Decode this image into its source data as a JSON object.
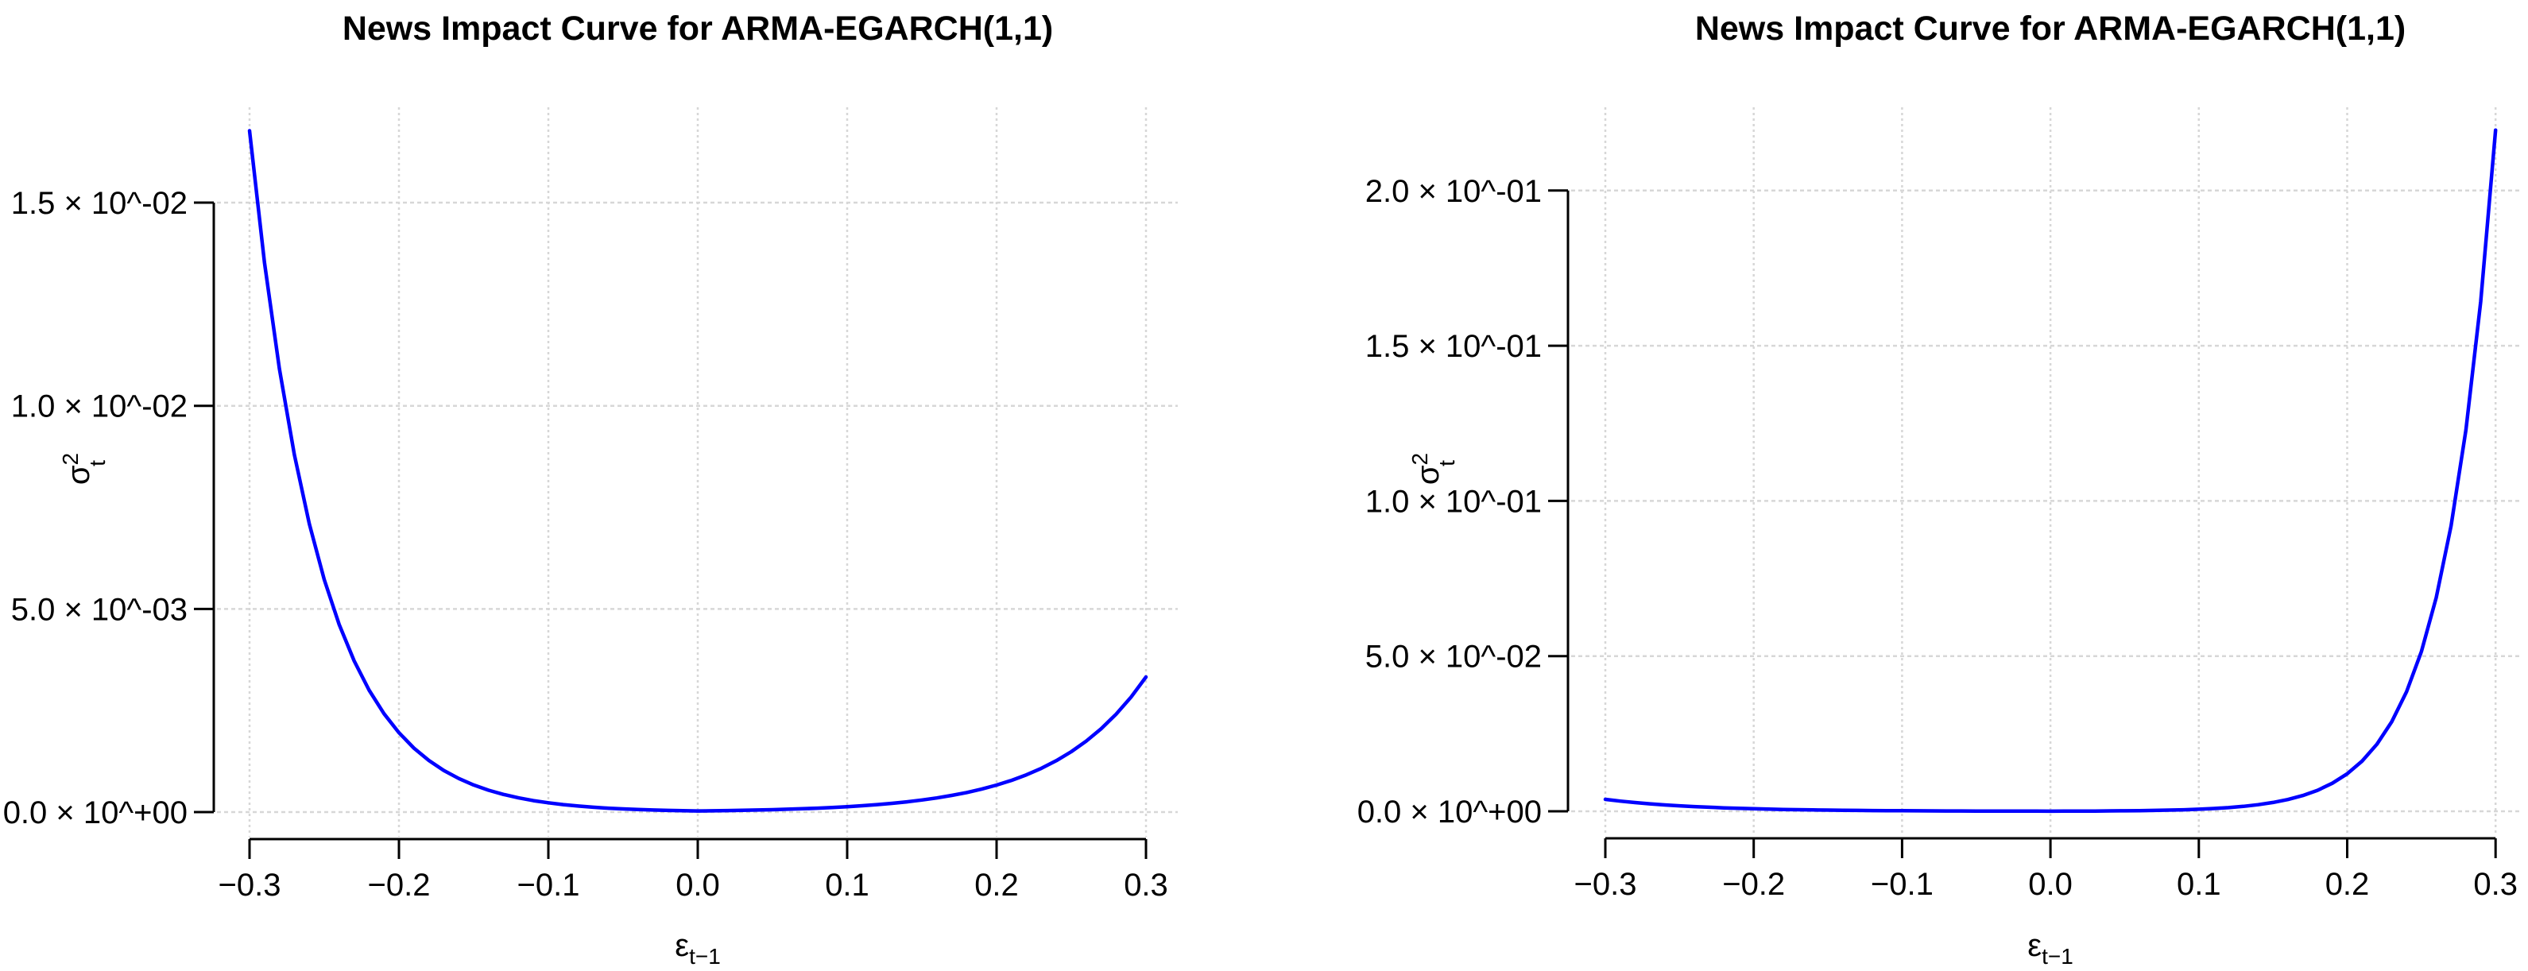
{
  "figure": {
    "background": "#ffffff",
    "curve_color": "#0000ff",
    "grid_color": "#d7d7d7",
    "axis_color": "#000000",
    "text_color": "#000000"
  },
  "chart_data": [
    {
      "type": "line",
      "title": "News Impact Curve for ARMA-EGARCH(1,1)",
      "xlabel": {
        "base": "ε",
        "sub": "t−1"
      },
      "ylabel": {
        "base": "σ",
        "sup": "2",
        "sub": "t"
      },
      "xlim": [
        -0.3,
        0.3
      ],
      "ylim": [
        0,
        0.0168
      ],
      "grid": true,
      "legend": null,
      "x_ticks": [
        -0.3,
        -0.2,
        -0.1,
        0.0,
        0.1,
        0.2,
        0.3
      ],
      "x_tick_labels": [
        "−0.3",
        "−0.2",
        "−0.1",
        "0.0",
        "0.1",
        "0.2",
        "0.3"
      ],
      "y_ticks": [
        0,
        0.005,
        0.01,
        0.015
      ],
      "y_tick_labels": [
        "0.0 × 10^+00",
        "5.0 × 10^-03",
        "1.0 × 10^-02",
        "1.5 × 10^-02"
      ],
      "series": [
        {
          "name": "news-impact-curve",
          "color": "#0000ff",
          "x": [
            -0.3,
            -0.29,
            -0.28,
            -0.27,
            -0.26,
            -0.25,
            -0.24,
            -0.23,
            -0.22,
            -0.21,
            -0.2,
            -0.19,
            -0.18,
            -0.17,
            -0.16,
            -0.15,
            -0.14,
            -0.13,
            -0.12,
            -0.11,
            -0.1,
            -0.09,
            -0.08,
            -0.07,
            -0.06,
            -0.05,
            -0.04,
            -0.03,
            -0.02,
            -0.01,
            0,
            0.01,
            0.02,
            0.03,
            0.04,
            0.05,
            0.06,
            0.07,
            0.08,
            0.09,
            0.1,
            0.11,
            0.12,
            0.13,
            0.14,
            0.15,
            0.16,
            0.17,
            0.18,
            0.19,
            0.2,
            0.21,
            0.22,
            0.23,
            0.24,
            0.25,
            0.26,
            0.27,
            0.28,
            0.29,
            0.3
          ],
          "y": [
            0.01677,
            0.013525,
            0.010908,
            0.008798,
            0.007096,
            0.005723,
            0.004616,
            0.003723,
            0.003003,
            0.002422,
            0.001953,
            0.001575,
            0.001271,
            0.001025,
            0.000827,
            0.000667,
            0.000538,
            0.000434,
            0.00035,
            0.000282,
            0.000228,
            0.000184,
            0.000148,
            0.000119,
            9.6e-05,
            7.8e-05,
            6.3e-05,
            5.1e-05,
            4.1e-05,
            3.3e-05,
            2.65e-05,
            3.1e-05,
            3.7e-05,
            4.3e-05,
            5.1e-05,
            5.9e-05,
            7e-05,
            8.2e-05,
            9.6e-05,
            0.000113,
            0.000133,
            0.000156,
            0.000183,
            0.000215,
            0.000253,
            0.000297,
            0.000349,
            0.00041,
            0.000481,
            0.000566,
            0.000664,
            0.00078,
            0.000917,
            0.001077,
            0.001265,
            0.001486,
            0.001746,
            0.002051,
            0.002409,
            0.00283,
            0.003324
          ]
        }
      ]
    },
    {
      "type": "line",
      "title": "News Impact Curve for ARMA-EGARCH(1,1)",
      "xlabel": {
        "base": "ε",
        "sub": "t−1"
      },
      "ylabel": {
        "base": "σ",
        "sup": "2",
        "sub": "t"
      },
      "xlim": [
        -0.3,
        0.3
      ],
      "ylim": [
        0,
        0.2195
      ],
      "grid": true,
      "legend": null,
      "x_ticks": [
        -0.3,
        -0.2,
        -0.1,
        0.0,
        0.1,
        0.2,
        0.3
      ],
      "x_tick_labels": [
        "−0.3",
        "−0.2",
        "−0.1",
        "0.0",
        "0.1",
        "0.2",
        "0.3"
      ],
      "y_ticks": [
        0,
        0.05,
        0.1,
        0.15,
        0.2
      ],
      "y_tick_labels": [
        "0.0 × 10^+00",
        "5.0 × 10^-02",
        "1.0 × 10^-01",
        "1.5 × 10^-01",
        "2.0 × 10^-01"
      ],
      "series": [
        {
          "name": "news-impact-curve",
          "color": "#0000ff",
          "x": [
            -0.3,
            -0.29,
            -0.28,
            -0.27,
            -0.26,
            -0.25,
            -0.24,
            -0.23,
            -0.22,
            -0.21,
            -0.2,
            -0.19,
            -0.18,
            -0.17,
            -0.16,
            -0.15,
            -0.14,
            -0.13,
            -0.12,
            -0.11,
            -0.1,
            -0.09,
            -0.08,
            -0.07,
            -0.06,
            -0.05,
            -0.04,
            -0.03,
            -0.02,
            -0.01,
            0,
            0.01,
            0.02,
            0.03,
            0.04,
            0.05,
            0.06,
            0.07,
            0.08,
            0.09,
            0.1,
            0.11,
            0.12,
            0.13,
            0.14,
            0.15,
            0.16,
            0.17,
            0.18,
            0.19,
            0.2,
            0.21,
            0.22,
            0.23,
            0.24,
            0.25,
            0.26,
            0.27,
            0.28,
            0.29,
            0.3
          ],
          "y": [
            0.00383,
            0.00328,
            0.002809,
            0.002405,
            0.00206,
            0.001764,
            0.001511,
            0.001294,
            0.001108,
            0.000949,
            0.000812,
            0.000696,
            0.000596,
            0.00051,
            0.000437,
            0.000374,
            0.00032,
            0.000274,
            0.000235,
            0.000201,
            0.000172,
            0.000148,
            0.000126,
            0.000108,
            9.3e-05,
            7.9e-05,
            6.8e-05,
            5.8e-05,
            5e-05,
            4.3e-05,
            3.66e-05,
            4.9e-05,
            6.5e-05,
            8.7e-05,
            0.000117,
            0.000156,
            0.000209,
            0.000279,
            0.000372,
            0.000498,
            0.000665,
            0.000889,
            0.001188,
            0.001587,
            0.002121,
            0.002835,
            0.003788,
            0.005062,
            0.006765,
            0.00904,
            0.012081,
            0.016144,
            0.021574,
            0.028832,
            0.03853,
            0.05149,
            0.06881,
            0.091958,
            0.12289,
            0.16423,
            0.219477
          ]
        }
      ]
    }
  ]
}
